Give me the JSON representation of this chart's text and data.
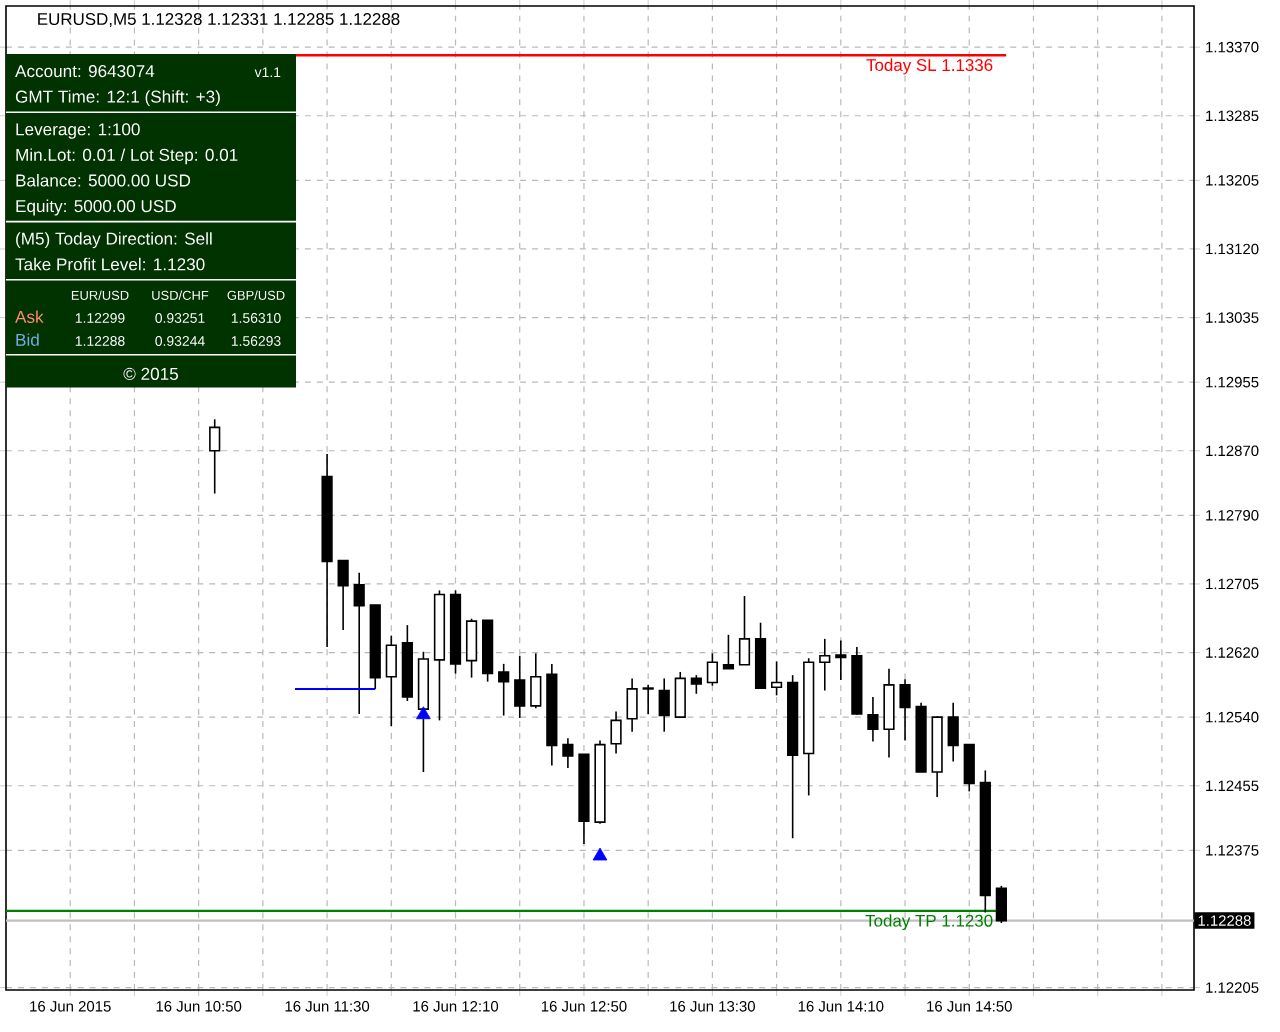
{
  "chart_data": {
    "type": "candlestick",
    "title": "EURUSD,M5 1.12328 1.12331 1.12285 1.12288",
    "x": [
      "2015-06-16T10:55",
      "2015-06-16T11:30",
      "2015-06-16T11:35",
      "2015-06-16T11:40",
      "2015-06-16T11:45",
      "2015-06-16T11:50",
      "2015-06-16T11:55",
      "2015-06-16T12:00",
      "2015-06-16T12:05",
      "2015-06-16T12:10",
      "2015-06-16T12:15",
      "2015-06-16T12:20",
      "2015-06-16T12:25",
      "2015-06-16T12:30",
      "2015-06-16T12:35",
      "2015-06-16T12:40",
      "2015-06-16T12:45",
      "2015-06-16T12:50",
      "2015-06-16T12:55",
      "2015-06-16T13:00",
      "2015-06-16T13:05",
      "2015-06-16T13:10",
      "2015-06-16T13:15",
      "2015-06-16T13:20",
      "2015-06-16T13:25",
      "2015-06-16T13:30",
      "2015-06-16T13:35",
      "2015-06-16T13:40",
      "2015-06-16T13:45",
      "2015-06-16T13:50",
      "2015-06-16T13:55",
      "2015-06-16T14:00",
      "2015-06-16T14:05",
      "2015-06-16T14:10",
      "2015-06-16T14:15",
      "2015-06-16T14:20",
      "2015-06-16T14:25",
      "2015-06-16T14:30",
      "2015-06-16T14:35",
      "2015-06-16T14:40",
      "2015-06-16T14:45",
      "2015-06-16T14:50",
      "2015-06-16T14:55",
      "2015-06-16T15:00"
    ],
    "ohlc": [
      [
        1.1287,
        1.12909,
        1.12817,
        1.12899
      ],
      [
        1.12838,
        1.12866,
        1.12627,
        1.12733
      ],
      [
        1.12734,
        1.12734,
        1.12648,
        1.12703
      ],
      [
        1.12704,
        1.12719,
        1.12544,
        1.12678
      ],
      [
        1.12679,
        1.12679,
        1.12575,
        1.12589
      ],
      [
        1.1259,
        1.12641,
        1.12529,
        1.12629
      ],
      [
        1.12632,
        1.12654,
        1.1256,
        1.12565
      ],
      [
        1.1255,
        1.12621,
        1.12472,
        1.12612
      ],
      [
        1.12611,
        1.12697,
        1.12536,
        1.12692
      ],
      [
        1.12692,
        1.12697,
        1.12594,
        1.12606
      ],
      [
        1.1261,
        1.12662,
        1.12589,
        1.12659
      ],
      [
        1.1266,
        1.1266,
        1.12584,
        1.12594
      ],
      [
        1.12596,
        1.12606,
        1.12542,
        1.12584
      ],
      [
        1.12586,
        1.12616,
        1.12539,
        1.12554
      ],
      [
        1.12554,
        1.12619,
        1.12551,
        1.1259
      ],
      [
        1.12593,
        1.12606,
        1.1248,
        1.12505
      ],
      [
        1.12506,
        1.12514,
        1.12477,
        1.12492
      ],
      [
        1.12494,
        1.12494,
        1.12383,
        1.12411
      ],
      [
        1.1241,
        1.12511,
        1.12408,
        1.12506
      ],
      [
        1.12507,
        1.12547,
        1.12495,
        1.12536
      ],
      [
        1.12538,
        1.12588,
        1.12522,
        1.12575
      ],
      [
        1.12576,
        1.1258,
        1.12544,
        1.12575
      ],
      [
        1.12573,
        1.12588,
        1.12522,
        1.12542
      ],
      [
        1.1254,
        1.12596,
        1.1254,
        1.12588
      ],
      [
        1.12588,
        1.12592,
        1.12569,
        1.12581
      ],
      [
        1.12583,
        1.12619,
        1.12579,
        1.12608
      ],
      [
        1.12605,
        1.12642,
        1.126,
        1.126
      ],
      [
        1.12605,
        1.1269,
        1.12605,
        1.12637
      ],
      [
        1.12637,
        1.12657,
        1.12576,
        1.12576
      ],
      [
        1.12577,
        1.12609,
        1.12567,
        1.12583
      ],
      [
        1.12583,
        1.12592,
        1.1239,
        1.12493
      ],
      [
        1.12495,
        1.12613,
        1.12443,
        1.12608
      ],
      [
        1.12608,
        1.12637,
        1.12573,
        1.12616
      ],
      [
        1.12617,
        1.12635,
        1.12586,
        1.12614
      ],
      [
        1.12616,
        1.12627,
        1.12543,
        1.12544
      ],
      [
        1.12543,
        1.12565,
        1.1251,
        1.12525
      ],
      [
        1.12525,
        1.126,
        1.1249,
        1.1258
      ],
      [
        1.1258,
        1.12587,
        1.12511,
        1.12552
      ],
      [
        1.12553,
        1.12558,
        1.12472,
        1.12472
      ],
      [
        1.12472,
        1.12541,
        1.12441,
        1.1254
      ],
      [
        1.1254,
        1.12558,
        1.12485,
        1.12505
      ],
      [
        1.12506,
        1.12506,
        1.12448,
        1.12458
      ],
      [
        1.12459,
        1.12474,
        1.12298,
        1.12319
      ],
      [
        1.12328,
        1.12331,
        1.12285,
        1.12288
      ]
    ],
    "series": [
      {
        "type": "scatter",
        "color": "#0000ff",
        "marker": "triangle",
        "x": [
          "2015-06-16T12:00",
          "2015-06-16T12:55"
        ],
        "values": [
          1.12543,
          1.12368
        ]
      },
      {
        "type": "line",
        "color": "#0000ff",
        "x": [
          "2015-06-16T11:20",
          "2015-06-16T11:45"
        ],
        "values": [
          1.12575,
          1.12575
        ]
      }
    ],
    "xlim": [
      "2015-06-16T09:50",
      "2015-06-16T16:00"
    ],
    "xticks": [
      {
        "value": "2015-06-16T10:10",
        "label": "16 Jun 2015"
      },
      {
        "value": "2015-06-16T10:30",
        "label": null
      },
      {
        "value": "2015-06-16T10:50",
        "label": "16 Jun 10:50"
      },
      {
        "value": "2015-06-16T11:10",
        "label": null
      },
      {
        "value": "2015-06-16T11:30",
        "label": "16 Jun 11:30"
      },
      {
        "value": "2015-06-16T11:50",
        "label": null
      },
      {
        "value": "2015-06-16T12:10",
        "label": "16 Jun 12:10"
      },
      {
        "value": "2015-06-16T12:30",
        "label": null
      },
      {
        "value": "2015-06-16T12:50",
        "label": "16 Jun 12:50"
      },
      {
        "value": "2015-06-16T13:10",
        "label": null
      },
      {
        "value": "2015-06-16T13:30",
        "label": "16 Jun 13:30"
      },
      {
        "value": "2015-06-16T13:50",
        "label": null
      },
      {
        "value": "2015-06-16T14:10",
        "label": "16 Jun 14:10"
      },
      {
        "value": "2015-06-16T14:30",
        "label": null
      },
      {
        "value": "2015-06-16T14:50",
        "label": "16 Jun 14:50"
      },
      {
        "value": "2015-06-16T15:10",
        "label": null
      },
      {
        "value": "2015-06-16T15:30",
        "label": null
      },
      {
        "value": "2015-06-16T15:50",
        "label": null
      }
    ],
    "ylim": [
      1.12202,
      1.13421
    ],
    "yticks": [
      {
        "value": 1.12205,
        "label": "1.12205"
      },
      {
        "value": 1.12375,
        "label": "1.12375"
      },
      {
        "value": 1.12455,
        "label": "1.12455"
      },
      {
        "value": 1.1254,
        "label": "1.12540"
      },
      {
        "value": 1.1262,
        "label": "1.12620"
      },
      {
        "value": 1.12705,
        "label": "1.12705"
      },
      {
        "value": 1.1279,
        "label": "1.12790"
      },
      {
        "value": 1.1287,
        "label": "1.12870"
      },
      {
        "value": 1.12955,
        "label": "1.12955"
      },
      {
        "value": 1.13035,
        "label": "1.13035"
      },
      {
        "value": 1.1312,
        "label": "1.13120"
      },
      {
        "value": 1.13205,
        "label": "1.13205"
      },
      {
        "value": 1.13285,
        "label": "1.13285"
      },
      {
        "value": 1.1337,
        "label": "1.13370"
      }
    ],
    "grid": true,
    "ref_lines": [
      {
        "axis": "y",
        "value": 1.1336,
        "label": "Today SL 1.1336",
        "color": "#ff0000",
        "line_style": "solid"
      },
      {
        "axis": "y",
        "value": 1.123,
        "label": "Today TP 1.1230",
        "color": "#008000",
        "line_style": "solid"
      },
      {
        "axis": "y",
        "value": 1.12288,
        "color": "#c0c0c0",
        "line_style": "solid"
      }
    ],
    "annotations": [
      "Account: 9643074",
      "v1.1",
      "GMT Time: 12:1 (Shift: +3)",
      "Leverage: 1:100",
      "Min.Lot: 0.01 / Lot Step: 0.01",
      "Balance: 5000.00 USD",
      "Equity: 5000.00 USD",
      "(M5) Today Direction: Sell",
      "Take Profit Level: 1.1230",
      "EUR/USD",
      "USD/CHF",
      "GBP/USD",
      "Ask",
      "1.12299",
      "0.93251",
      "1.56310",
      "Bid",
      "1.12288",
      "0.93244",
      "1.56293",
      "© 2015",
      "1.12288"
    ]
  }
}
